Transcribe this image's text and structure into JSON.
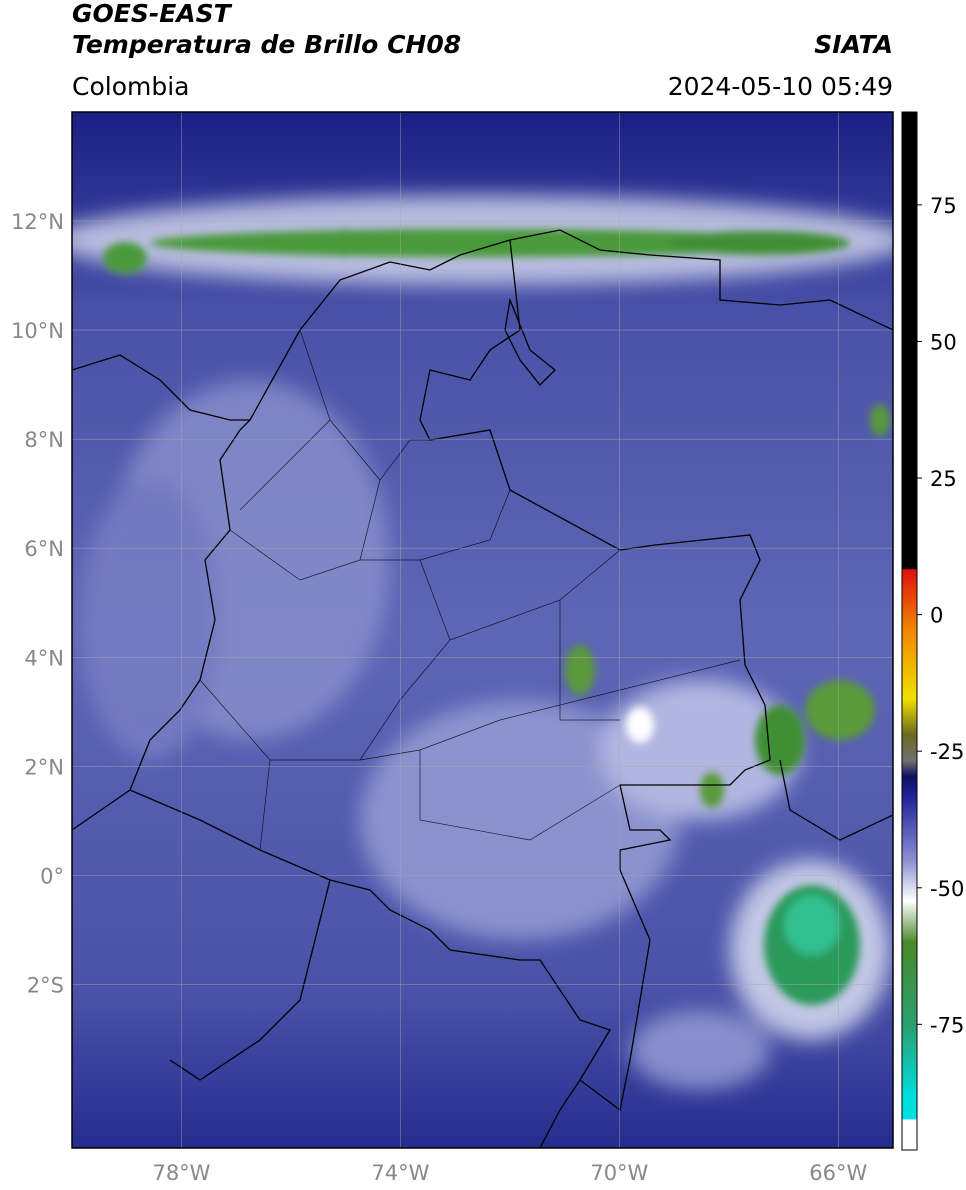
{
  "header": {
    "title_line1": "GOES-EAST",
    "title_line2": "Temperatura de Brillo CH08",
    "source": "SIATA",
    "region": "Colombia",
    "timestamp": "2024-05-10 05:49"
  },
  "map": {
    "lon_extent": [
      -80,
      -65
    ],
    "lat_extent": [
      -5,
      14
    ],
    "lat_ticks": [
      {
        "value": 12,
        "label": "12°N"
      },
      {
        "value": 10,
        "label": "10°N"
      },
      {
        "value": 8,
        "label": "8°N"
      },
      {
        "value": 6,
        "label": "6°N"
      },
      {
        "value": 4,
        "label": "4°N"
      },
      {
        "value": 2,
        "label": "2°N"
      },
      {
        "value": 0,
        "label": "0°"
      },
      {
        "value": -2,
        "label": "2°S"
      }
    ],
    "lon_ticks": [
      {
        "value": -78,
        "label": "78°W"
      },
      {
        "value": -74,
        "label": "74°W"
      },
      {
        "value": -70,
        "label": "70°W"
      },
      {
        "value": -66,
        "label": "66°W"
      }
    ]
  },
  "colorbar": {
    "range": [
      -98,
      92
    ],
    "ticks": [
      75,
      50,
      25,
      0,
      -25,
      -50,
      -75
    ]
  }
}
